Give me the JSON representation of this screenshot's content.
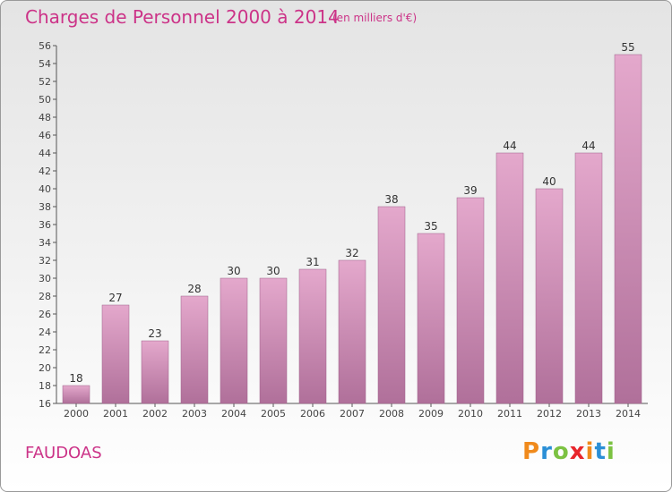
{
  "title": "Charges de Personnel 2000 à 2014",
  "subtitle": "(en milliers d'€)",
  "place": "FAUDOAS",
  "logo": {
    "letters": [
      "P",
      "r",
      "o",
      "x",
      "i",
      "t",
      "i"
    ],
    "colors": [
      "#f08a1c",
      "#2b8fd6",
      "#7cc242",
      "#e8262c",
      "#f08a1c",
      "#2b8fd6",
      "#7cc242"
    ]
  },
  "colors": {
    "bar_top": "#e4a8cc",
    "bar_bottom": "#b0709a",
    "accent": "#cc3388"
  },
  "chart_data": {
    "type": "bar",
    "title": "Charges de Personnel 2000 à 2014",
    "categories": [
      "2000",
      "2001",
      "2002",
      "2003",
      "2004",
      "2005",
      "2006",
      "2007",
      "2008",
      "2009",
      "2010",
      "2011",
      "2012",
      "2013",
      "2014"
    ],
    "values": [
      18,
      27,
      23,
      28,
      30,
      30,
      31,
      32,
      38,
      35,
      39,
      44,
      40,
      44,
      55
    ],
    "ylim": [
      16,
      56
    ],
    "yticks": [
      16,
      18,
      20,
      22,
      24,
      26,
      28,
      30,
      32,
      34,
      36,
      38,
      40,
      42,
      44,
      46,
      48,
      50,
      52,
      54,
      56
    ],
    "grid": false,
    "data_labels": true
  }
}
